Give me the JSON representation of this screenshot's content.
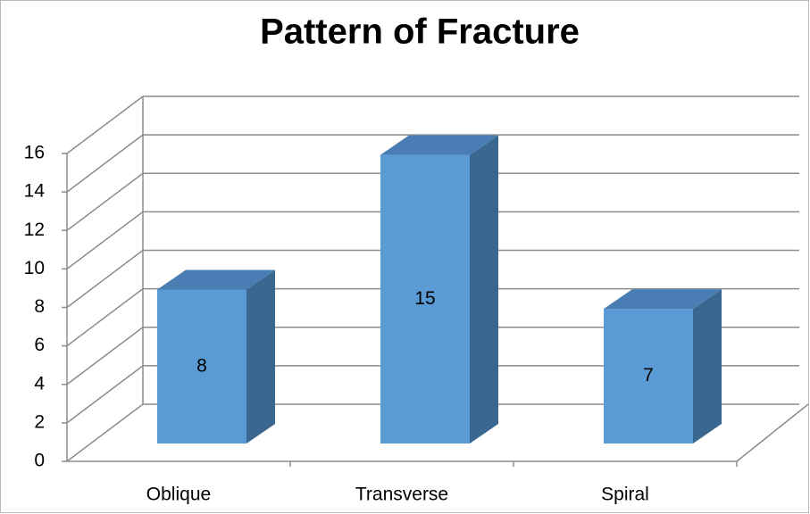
{
  "chart_data": {
    "type": "bar3d",
    "title": "Pattern of Fracture",
    "categories": [
      "Oblique",
      "Transverse",
      "Spiral"
    ],
    "values": [
      8,
      15,
      7
    ],
    "color": "#5b9bd5",
    "ylim": [
      0,
      16
    ],
    "yticks": [
      0,
      2,
      4,
      6,
      8,
      10,
      12,
      14,
      16
    ],
    "grid": true
  }
}
